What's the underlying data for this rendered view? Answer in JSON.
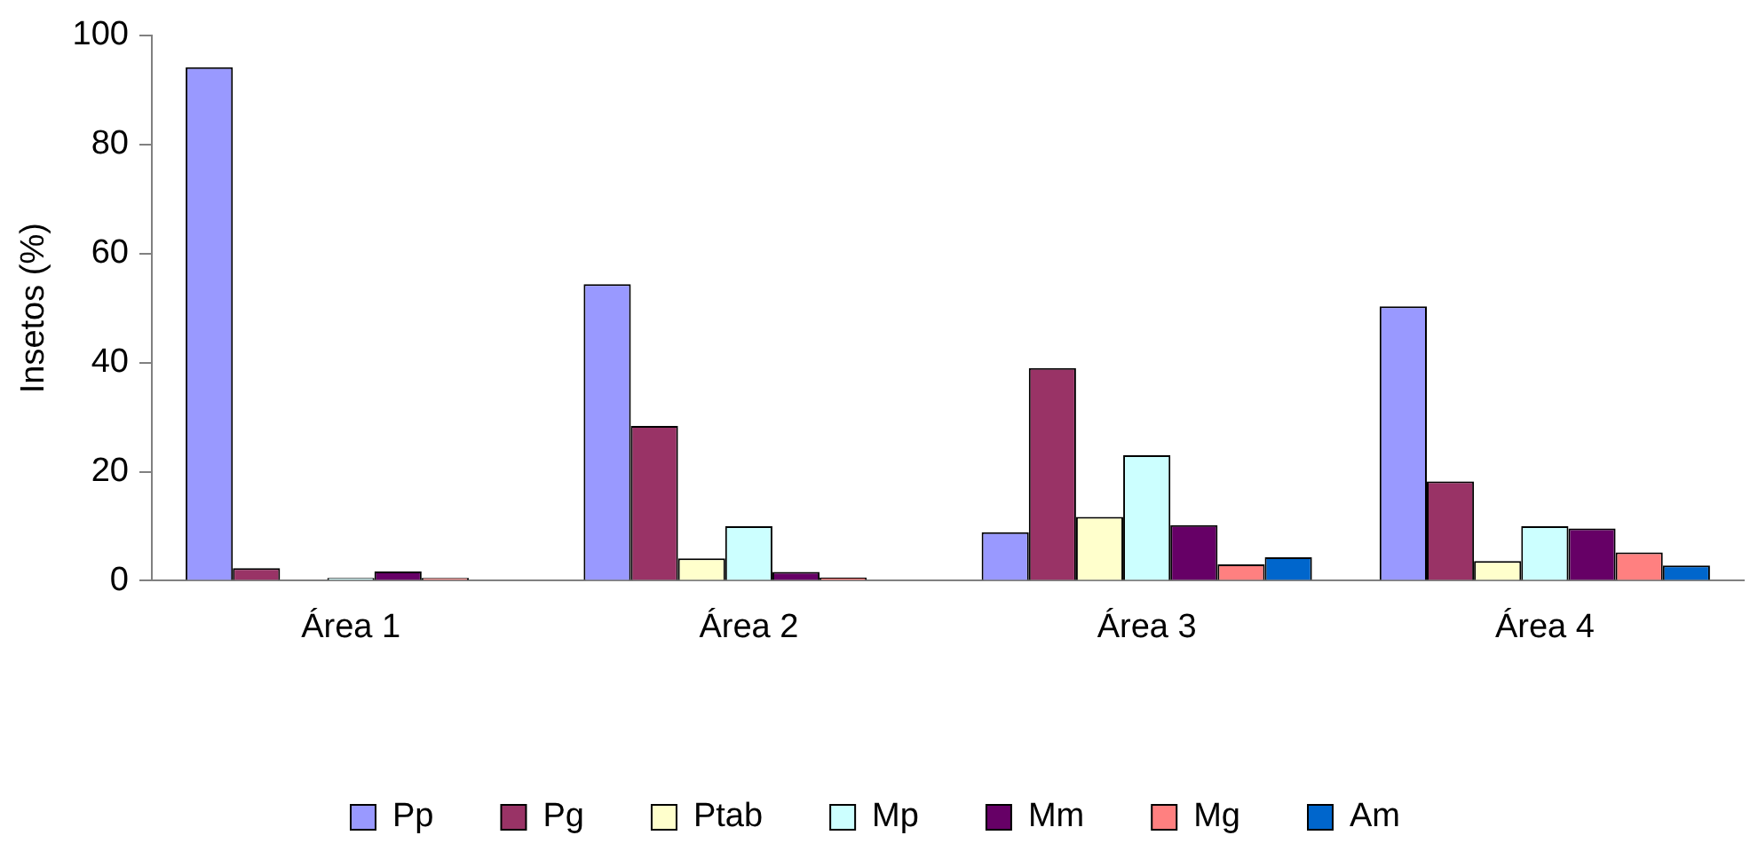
{
  "chart_data": {
    "type": "bar",
    "ylabel": "Insetos (%)",
    "categories": [
      "Área 1",
      "Área 2",
      "Área 3",
      "Área 4"
    ],
    "series": [
      {
        "name": "Pp",
        "color": "#9999ff",
        "values": [
          94.2,
          54.4,
          8.9,
          50.3
        ]
      },
      {
        "name": "Pg",
        "color": "#993366",
        "values": [
          2.3,
          28.4,
          39,
          18.2
        ]
      },
      {
        "name": "Ptab",
        "color": "#ffffcc",
        "values": [
          0,
          4.1,
          11.7,
          3.6
        ]
      },
      {
        "name": "Mp",
        "color": "#ccffff",
        "values": [
          0.5,
          10,
          23,
          10
        ]
      },
      {
        "name": "Mm",
        "color": "#660066",
        "values": [
          1.7,
          1.6,
          10.2,
          9.6
        ]
      },
      {
        "name": "Mg",
        "color": "#ff8080",
        "values": [
          0.5,
          0.6,
          3,
          5.2
        ]
      },
      {
        "name": "Am",
        "color": "#0066cc",
        "values": [
          0,
          0,
          4.3,
          2.8
        ]
      }
    ],
    "ylim": [
      0,
      100
    ],
    "yticks": [
      0,
      20,
      40,
      60,
      80,
      100
    ],
    "grid": false,
    "legend": "bottom"
  }
}
